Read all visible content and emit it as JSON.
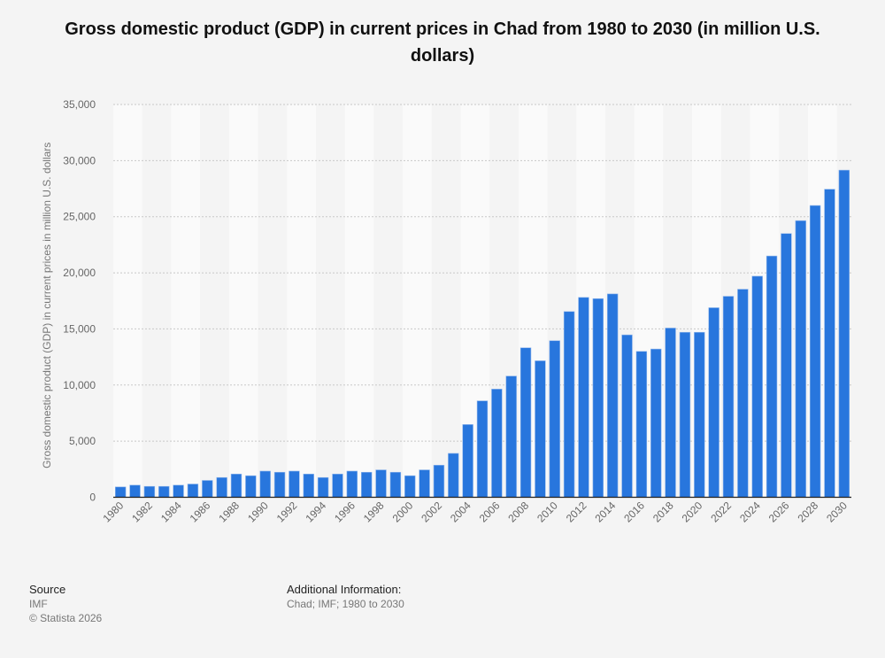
{
  "chart_data": {
    "type": "bar",
    "title": "Gross domestic product (GDP) in current prices in Chad from 1980 to 2030 (in million U.S. dollars)",
    "xlabel": "",
    "ylabel": "Gross domestic product (GDP) in current prices in million U.S. dollars",
    "ylim": [
      0,
      35000
    ],
    "yticks": [
      "0",
      "5,000",
      "10,000",
      "15,000",
      "20,000",
      "25,000",
      "30,000",
      "35,000"
    ],
    "grid": true,
    "bar_color": "#2876dd",
    "categories": [
      "1980",
      "1981",
      "1982",
      "1983",
      "1984",
      "1985",
      "1986",
      "1987",
      "1988",
      "1989",
      "1990",
      "1991",
      "1992",
      "1993",
      "1994",
      "1995",
      "1996",
      "1997",
      "1998",
      "1999",
      "2000",
      "2001",
      "2002",
      "2003",
      "2004",
      "2005",
      "2006",
      "2007",
      "2008",
      "2009",
      "2010",
      "2011",
      "2012",
      "2013",
      "2014",
      "2015",
      "2016",
      "2017",
      "2018",
      "2019",
      "2020",
      "2021",
      "2022",
      "2023",
      "2024",
      "2025",
      "2026",
      "2027",
      "2028",
      "2029",
      "2030"
    ],
    "values": [
      920,
      1080,
      970,
      970,
      1080,
      1180,
      1500,
      1760,
      2070,
      1920,
      2330,
      2230,
      2330,
      2070,
      1760,
      2070,
      2330,
      2230,
      2440,
      2230,
      1920,
      2440,
      2860,
      3910,
      6480,
      8590,
      9640,
      10800,
      13320,
      12160,
      13950,
      16550,
      17810,
      17700,
      18120,
      14470,
      13000,
      13210,
      15080,
      14700,
      14700,
      16890,
      17910,
      18540,
      19700,
      21500,
      23500,
      24650,
      26000,
      27450,
      29150
    ]
  },
  "footer": {
    "source_label": "Source",
    "source": "IMF",
    "copyright": "© Statista 2026",
    "info_label": "Additional Information:",
    "info": "Chad; IMF; 1980 to 2030"
  }
}
